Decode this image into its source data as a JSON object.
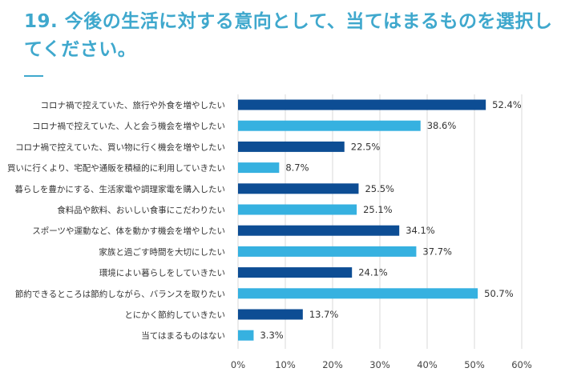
{
  "title": "19. 今後の生活に対する意向として、当てはまるものを選択してください。",
  "colors": {
    "title": "#3fa8cd",
    "dark": "#0d4d94",
    "light": "#36b1e0"
  },
  "chart_data": {
    "type": "bar",
    "orientation": "horizontal",
    "title": "19. 今後の生活に対する意向として、当てはまるものを選択してください。",
    "categories": [
      "コロナ禍で控えていた、旅行や外食を増やしたい",
      "コロナ禍で控えていた、人と会う機会を増やしたい",
      "コロナ禍で控えていた、買い物に行く機会を増やしたい",
      "買いに行くより、宅配や通販を積極的に利用していきたい",
      "暮らしを豊かにする、生活家電や調理家電を購入したい",
      "食料品や飲料、おいしい食事にこだわりたい",
      "スポーツや運動など、体を動かす機会を増やしたい",
      "家族と過ごす時間を大切にしたい",
      "環境によい暮らしをしていきたい",
      "節約できるところは節約しながら、バランスを取りたい",
      "とにかく節約していきたい",
      "当てはまるものはない"
    ],
    "values": [
      52.4,
      38.6,
      22.5,
      8.7,
      25.5,
      25.1,
      34.1,
      37.7,
      24.1,
      50.7,
      13.7,
      3.3
    ],
    "value_labels": [
      "52.4%",
      "38.6%",
      "22.5%",
      "8.7%",
      "25.5%",
      "25.1%",
      "34.1%",
      "37.7%",
      "24.1%",
      "50.7%",
      "13.7%",
      "3.3%"
    ],
    "bar_colors": [
      "dark",
      "light",
      "dark",
      "light",
      "dark",
      "light",
      "dark",
      "light",
      "dark",
      "light",
      "dark",
      "light"
    ],
    "xlim": [
      0,
      60
    ],
    "xticks": [
      0,
      10,
      20,
      30,
      40,
      50,
      60
    ],
    "xtick_labels": [
      "0%",
      "10%",
      "20%",
      "30%",
      "40%",
      "50%",
      "60%"
    ],
    "grid": true,
    "xlabel": "",
    "ylabel": ""
  }
}
